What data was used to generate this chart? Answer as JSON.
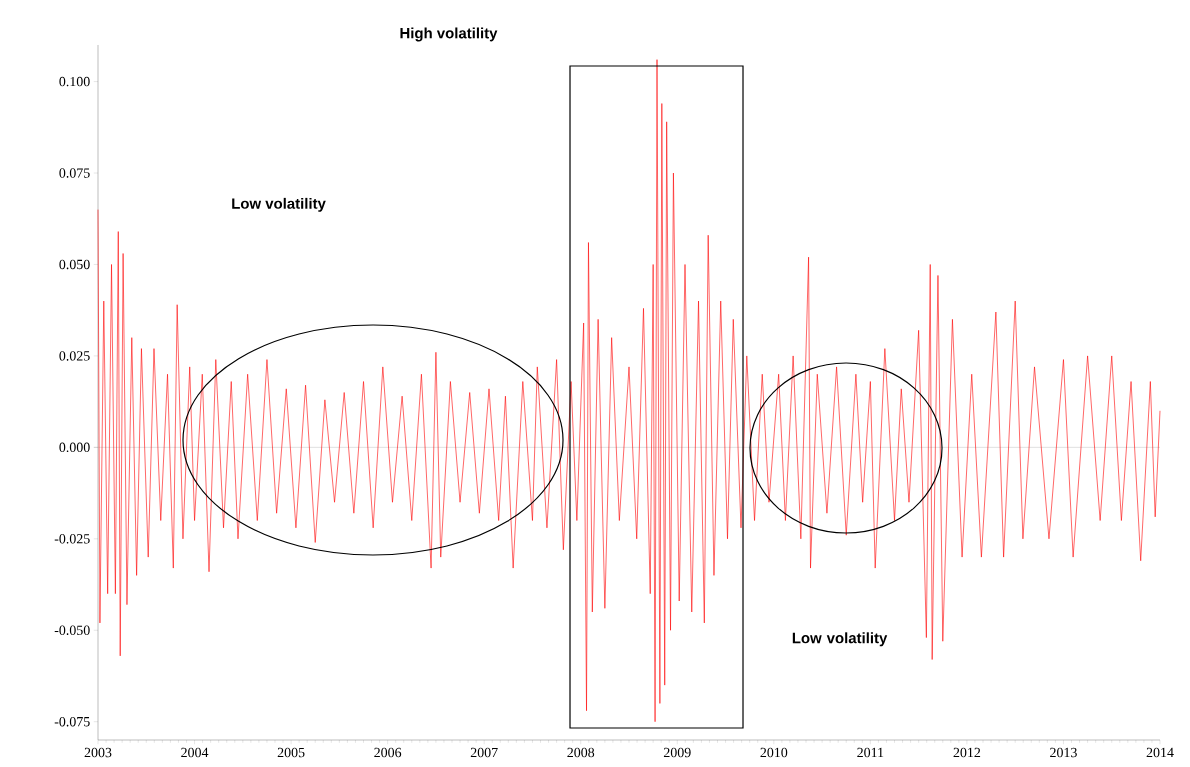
{
  "chart_data": {
    "type": "line",
    "x": [
      2003.0,
      2003.02,
      2003.06,
      2003.1,
      2003.14,
      2003.18,
      2003.21,
      2003.23,
      2003.26,
      2003.3,
      2003.35,
      2003.4,
      2003.45,
      2003.52,
      2003.58,
      2003.65,
      2003.72,
      2003.78,
      2003.82,
      2003.88,
      2003.95,
      2004.0,
      2004.08,
      2004.15,
      2004.22,
      2004.3,
      2004.38,
      2004.45,
      2004.55,
      2004.65,
      2004.75,
      2004.85,
      2004.95,
      2005.05,
      2005.15,
      2005.25,
      2005.35,
      2005.45,
      2005.55,
      2005.65,
      2005.75,
      2005.85,
      2005.95,
      2006.05,
      2006.15,
      2006.25,
      2006.35,
      2006.45,
      2006.5,
      2006.55,
      2006.65,
      2006.75,
      2006.85,
      2006.95,
      2007.05,
      2007.15,
      2007.22,
      2007.3,
      2007.4,
      2007.5,
      2007.55,
      2007.65,
      2007.75,
      2007.82,
      2007.9,
      2007.96,
      2008.03,
      2008.06,
      2008.08,
      2008.12,
      2008.18,
      2008.25,
      2008.32,
      2008.4,
      2008.5,
      2008.58,
      2008.65,
      2008.72,
      2008.75,
      2008.77,
      2008.79,
      2008.82,
      2008.84,
      2008.87,
      2008.89,
      2008.93,
      2008.96,
      2009.02,
      2009.08,
      2009.15,
      2009.22,
      2009.28,
      2009.32,
      2009.38,
      2009.45,
      2009.52,
      2009.58,
      2009.66,
      2009.72,
      2009.8,
      2009.88,
      2009.95,
      2010.05,
      2010.12,
      2010.2,
      2010.28,
      2010.36,
      2010.38,
      2010.45,
      2010.55,
      2010.65,
      2010.75,
      2010.85,
      2010.92,
      2011.0,
      2011.05,
      2011.15,
      2011.25,
      2011.32,
      2011.4,
      2011.5,
      2011.58,
      2011.62,
      2011.64,
      2011.7,
      2011.75,
      2011.85,
      2011.95,
      2012.05,
      2012.15,
      2012.3,
      2012.38,
      2012.5,
      2012.58,
      2012.7,
      2012.85,
      2013.0,
      2013.1,
      2013.25,
      2013.38,
      2013.5,
      2013.6,
      2013.7,
      2013.8,
      2013.9,
      2013.95,
      2014.0
    ],
    "series": [
      {
        "color": "#ff0000",
        "values": [
          0.065,
          -0.048,
          0.04,
          -0.04,
          0.05,
          -0.04,
          0.059,
          -0.057,
          0.053,
          -0.043,
          0.03,
          -0.035,
          0.027,
          -0.03,
          0.027,
          -0.02,
          0.02,
          -0.033,
          0.039,
          -0.025,
          0.022,
          -0.02,
          0.02,
          -0.034,
          0.024,
          -0.022,
          0.018,
          -0.025,
          0.02,
          -0.02,
          0.024,
          -0.018,
          0.016,
          -0.022,
          0.017,
          -0.026,
          0.013,
          -0.015,
          0.015,
          -0.018,
          0.018,
          -0.022,
          0.022,
          -0.015,
          0.014,
          -0.02,
          0.02,
          -0.033,
          0.026,
          -0.03,
          0.018,
          -0.015,
          0.015,
          -0.018,
          0.016,
          -0.02,
          0.014,
          -0.033,
          0.018,
          -0.02,
          0.022,
          -0.022,
          0.024,
          -0.028,
          0.018,
          -0.02,
          0.034,
          -0.072,
          0.056,
          -0.045,
          0.035,
          -0.044,
          0.03,
          -0.02,
          0.022,
          -0.025,
          0.038,
          -0.04,
          0.05,
          -0.075,
          0.106,
          -0.07,
          0.094,
          -0.065,
          0.089,
          -0.05,
          0.075,
          -0.042,
          0.05,
          -0.045,
          0.04,
          -0.048,
          0.058,
          -0.035,
          0.04,
          -0.025,
          0.035,
          -0.022,
          0.025,
          -0.02,
          0.02,
          -0.015,
          0.02,
          -0.02,
          0.025,
          -0.025,
          0.052,
          -0.033,
          0.02,
          -0.018,
          0.022,
          -0.024,
          0.02,
          -0.015,
          0.018,
          -0.033,
          0.027,
          -0.02,
          0.016,
          -0.015,
          0.032,
          -0.052,
          0.05,
          -0.058,
          0.047,
          -0.053,
          0.035,
          -0.03,
          0.02,
          -0.03,
          0.037,
          -0.03,
          0.04,
          -0.025,
          0.022,
          -0.025,
          0.024,
          -0.03,
          0.025,
          -0.02,
          0.025,
          -0.02,
          0.018,
          -0.031,
          0.018,
          -0.019,
          0.01
        ]
      }
    ],
    "xlim": [
      2003,
      2014
    ],
    "xticks": [
      2003,
      2004,
      2005,
      2006,
      2007,
      2008,
      2009,
      2010,
      2011,
      2012,
      2013,
      2014
    ],
    "ylim": [
      -0.08,
      0.11
    ],
    "yticks": [
      {
        "value": -0.075,
        "label": "-0.075"
      },
      {
        "value": -0.05,
        "label": "-0.050"
      },
      {
        "value": -0.025,
        "label": "-0.025"
      },
      {
        "value": 0,
        "label": "0.000"
      },
      {
        "value": 0.025,
        "label": "0.025"
      },
      {
        "value": 0.05,
        "label": "0.050"
      },
      {
        "value": 0.075,
        "label": "0.075"
      },
      {
        "value": 0.1,
        "label": "0.100"
      }
    ],
    "line_style": "solid",
    "annotations": [
      "High volatility",
      "Low volatility",
      "Low volatility"
    ]
  }
}
